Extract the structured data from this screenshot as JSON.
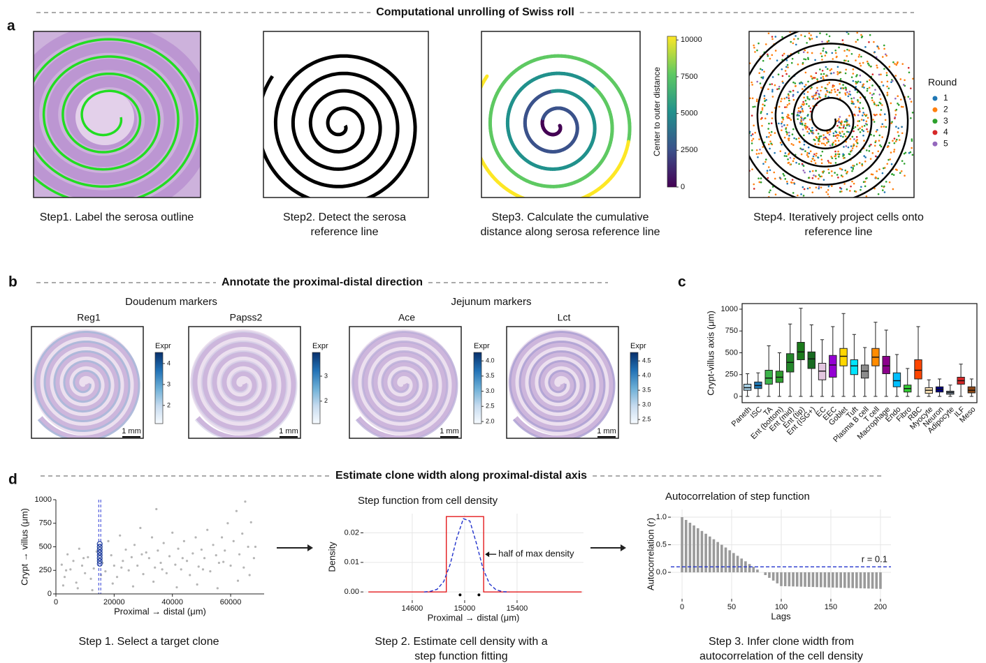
{
  "panel_a": {
    "letter": "a",
    "title": "Computational unrolling of Swiss roll",
    "captions": [
      [
        "Step1. Label the serosa outline"
      ],
      [
        "Step2. Detect the serosa",
        "reference line"
      ],
      [
        "Step3. Calculate the cumulative",
        "distance along serosa reference line"
      ],
      [
        "Step4. Iteratively project cells onto",
        "reference line"
      ]
    ]
  },
  "panel_b": {
    "letter": "b",
    "title": "Annotate the proximal-distal direction",
    "groups": [
      "Doudenum markers",
      "Jejunum markers"
    ],
    "scale_bar": "1 mm"
  },
  "panel_c": {
    "letter": "c"
  },
  "panel_d": {
    "letter": "d",
    "title": "Estimate clone width along proximal-distal axis",
    "captions": [
      [
        "Step 1. Select a target clone"
      ],
      [
        "Step 2. Estimate cell density with a",
        "step function fitting"
      ],
      [
        "Step 3. Infer clone width from",
        "autocorrelation of the cell density"
      ]
    ]
  },
  "chart_data": [
    {
      "type": "colorbar",
      "label": "Center to outer distance",
      "colormap": "viridis",
      "ylim": [
        0,
        10250
      ],
      "yticks": [
        0,
        2500,
        5000,
        7500,
        10000
      ]
    },
    {
      "type": "scatter",
      "legend_title": "Round",
      "series": [
        {
          "name": "1",
          "color": "#1f77b4"
        },
        {
          "name": "2",
          "color": "#ff7f0e"
        },
        {
          "name": "3",
          "color": "#2ca02c"
        },
        {
          "name": "4",
          "color": "#d62728"
        },
        {
          "name": "5",
          "color": "#9467bd"
        }
      ]
    },
    {
      "type": "colorbar",
      "title": "Reg1",
      "label": "Expr",
      "colormap": "blues",
      "ylim": [
        1.13,
        4.53
      ],
      "yticks": [
        2,
        3,
        4
      ]
    },
    {
      "type": "colorbar",
      "title": "Papss2",
      "label": "Expr",
      "colormap": "blues",
      "ylim": [
        1.1,
        3.95
      ],
      "yticks": [
        2,
        3
      ]
    },
    {
      "type": "colorbar",
      "title": "Ace",
      "label": "Expr",
      "colormap": "blues",
      "ylim": [
        1.93,
        4.28
      ],
      "yticks": [
        {
          "value": 2,
          "label": "2.0"
        },
        {
          "value": 2.5,
          "label": "2.5"
        },
        {
          "value": 3,
          "label": "3.0"
        },
        {
          "value": 3.5,
          "label": "3.5"
        },
        {
          "value": 4,
          "label": "4.0"
        }
      ]
    },
    {
      "type": "colorbar",
      "title": "Lct",
      "label": "Expr",
      "colormap": "blues",
      "ylim": [
        2.36,
        4.79
      ],
      "yticks": [
        2.5,
        {
          "value": 3,
          "label": "3.0"
        },
        3.5,
        {
          "value": 4,
          "label": "4.0"
        },
        4.5
      ]
    },
    {
      "type": "box",
      "ylabel": "Crypt-villus axis (μm)",
      "ylim": [
        -72,
        1064
      ],
      "yticks": [
        0,
        250,
        500,
        750,
        1000
      ],
      "categories": [
        "Paneth",
        "ISC",
        "TA",
        "Ent (bottom)",
        "Ent (mid)",
        "Ent (tip)",
        "Ent (ISG+)",
        "EC",
        "EEC",
        "Goblet",
        "Tuft",
        "Plasma B cell",
        "T cell",
        "Macrophage",
        "Endo",
        "Fibro",
        "RBC",
        "Myocyte",
        "Neuron",
        "Adipocyte",
        "ILF",
        "Meso"
      ],
      "colors": [
        "#a6cee3",
        "#1f78b4",
        "#3cb44b",
        "#2e9e2e",
        "#23872a",
        "#1b7a1b",
        "#196b22",
        "#e3c6e0",
        "#9400d3",
        "#ffd700",
        "#00e5ff",
        "#8c8c8c",
        "#ff8c00",
        "#8b008b",
        "#00bfff",
        "#32cd32",
        "#ff4500",
        "#f5deb3",
        "#000080",
        "#708090",
        "#d62728",
        "#8b4513"
      ],
      "boxes": [
        {
          "min": 0,
          "q1": 70,
          "median": 100,
          "q3": 140,
          "max": 260
        },
        {
          "min": 0,
          "q1": 90,
          "median": 125,
          "q3": 165,
          "max": 270
        },
        {
          "min": 0,
          "q1": 140,
          "median": 210,
          "q3": 300,
          "max": 580
        },
        {
          "min": 0,
          "q1": 160,
          "median": 220,
          "q3": 290,
          "max": 500
        },
        {
          "min": 0,
          "q1": 280,
          "median": 390,
          "q3": 490,
          "max": 830
        },
        {
          "min": 0,
          "q1": 420,
          "median": 510,
          "q3": 620,
          "max": 1010
        },
        {
          "min": 0,
          "q1": 320,
          "median": 430,
          "q3": 510,
          "max": 820
        },
        {
          "min": 0,
          "q1": 190,
          "median": 290,
          "q3": 380,
          "max": 650
        },
        {
          "min": 0,
          "q1": 220,
          "median": 360,
          "q3": 470,
          "max": 800
        },
        {
          "min": 0,
          "q1": 350,
          "median": 460,
          "q3": 550,
          "max": 950
        },
        {
          "min": 0,
          "q1": 250,
          "median": 350,
          "q3": 420,
          "max": 710
        },
        {
          "min": 0,
          "q1": 210,
          "median": 290,
          "q3": 360,
          "max": 560
        },
        {
          "min": 0,
          "q1": 350,
          "median": 450,
          "q3": 550,
          "max": 850
        },
        {
          "min": 0,
          "q1": 260,
          "median": 350,
          "q3": 460,
          "max": 760
        },
        {
          "min": 0,
          "q1": 110,
          "median": 180,
          "q3": 270,
          "max": 480
        },
        {
          "min": 0,
          "q1": 50,
          "median": 90,
          "q3": 130,
          "max": 320
        },
        {
          "min": 0,
          "q1": 200,
          "median": 300,
          "q3": 420,
          "max": 800
        },
        {
          "min": 0,
          "q1": 35,
          "median": 70,
          "q3": 100,
          "max": 190
        },
        {
          "min": 0,
          "q1": 50,
          "median": 80,
          "q3": 110,
          "max": 200
        },
        {
          "min": 0,
          "q1": 25,
          "median": 45,
          "q3": 60,
          "max": 130
        },
        {
          "min": 0,
          "q1": 140,
          "median": 180,
          "q3": 220,
          "max": 370
        },
        {
          "min": 0,
          "q1": 40,
          "median": 70,
          "q3": 110,
          "max": 200
        }
      ]
    },
    {
      "type": "scatter",
      "xlabel": "Proximal → distal (μm)",
      "ylabel": "Crypt → villus (μm)",
      "xlim": [
        0,
        71500
      ],
      "ylim": [
        0,
        1000
      ],
      "xticks": [
        0,
        20000,
        40000,
        60000
      ],
      "yticks": [
        0,
        250,
        500,
        750,
        1000
      ],
      "color": "#b5b5b5",
      "x": [
        2000,
        3000,
        4000,
        5000,
        6000,
        7000,
        8000,
        9000,
        10000,
        11000,
        12000,
        13000,
        14000,
        16000,
        17000,
        18000,
        19000,
        20000,
        21000,
        22000,
        23000,
        24000,
        25000,
        26000,
        27000,
        28000,
        29000,
        30000,
        31000,
        32000,
        33000,
        34000,
        34500,
        35000,
        36000,
        37000,
        38000,
        39000,
        40000,
        41000,
        42000,
        43000,
        44000,
        45000,
        46000,
        47000,
        48000,
        49000,
        50000,
        51000,
        52000,
        53000,
        54000,
        55000,
        56000,
        57000,
        58000,
        59000,
        60000,
        61000,
        62000,
        63000,
        64000,
        65000,
        66000,
        67000,
        68000,
        2500,
        7500,
        12500,
        19500,
        26500,
        33500,
        41500,
        48500,
        55500,
        62500,
        66500,
        3500,
        9500,
        15500,
        22500,
        29500,
        36500,
        43500,
        50500,
        57500,
        64500,
        68500
      ],
      "values": [
        310,
        180,
        420,
        260,
        350,
        120,
        480,
        300,
        220,
        390,
        160,
        270,
        450,
        330,
        240,
        560,
        410,
        300,
        180,
        620,
        350,
        470,
        250,
        390,
        520,
        300,
        700,
        210,
        440,
        380,
        600,
        280,
        900,
        460,
        330,
        540,
        220,
        400,
        650,
        310,
        480,
        260,
        560,
        350,
        200,
        430,
        600,
        290,
        470,
        380,
        680,
        240,
        520,
        410,
        330,
        600,
        460,
        750,
        300,
        560,
        880,
        420,
        640,
        980,
        500,
        760,
        380,
        90,
        60,
        40,
        110,
        80,
        130,
        70,
        100,
        60,
        140,
        200,
        250,
        380,
        200,
        280,
        420,
        260,
        380,
        260,
        340,
        280,
        500
      ],
      "highlight": {
        "color": "#1f3f99",
        "x": [
          15050,
          15050,
          15050,
          15050,
          15050,
          15050,
          15050,
          15050
        ],
        "values": [
          320,
          350,
          380,
          410,
          440,
          470,
          500,
          530
        ]
      },
      "vlines": [
        14700,
        15400
      ],
      "vline_color": "#2b3bd6"
    },
    {
      "type": "line",
      "title": "Step function from cell density",
      "xlabel": "Proximal → distal (μm)",
      "ylabel": "Density",
      "xlim": [
        14227,
        15907
      ],
      "ylim": [
        -0.0028,
        0.0265
      ],
      "xticks": [
        14600,
        15000,
        15400
      ],
      "yticks": [
        {
          "value": 0,
          "label": "0.00"
        },
        {
          "value": 0.01,
          "label": "0.01"
        },
        {
          "value": 0.02,
          "label": "0.02"
        }
      ],
      "series": [
        {
          "color": "#e41a1c",
          "style": "solid",
          "x": [
            14265,
            14860,
            14860,
            15145,
            15145,
            15893
          ],
          "values": [
            0,
            0,
            0.0255,
            0.0255,
            0,
            0
          ]
        },
        {
          "color": "#2233cc",
          "style": "dashed",
          "x": [
            14690,
            14740,
            14790,
            14840,
            14890,
            14940,
            14990,
            15040,
            15090,
            15140,
            15190,
            15240,
            15290,
            15340
          ],
          "values": [
            0,
            0.0002,
            0.0009,
            0.0035,
            0.0094,
            0.0182,
            0.0248,
            0.024,
            0.0164,
            0.0079,
            0.0027,
            0.0007,
            0.0001,
            0
          ]
        }
      ],
      "points": {
        "color": "#000000",
        "x": [
          14965,
          15109
        ],
        "values": [
          -0.001,
          -0.001
        ]
      },
      "annotation": {
        "text": "half of max density",
        "x": 15145,
        "y": 0.01275
      }
    },
    {
      "type": "stem",
      "title": "Autocorrelation of step function",
      "xlabel": "Lags",
      "ylabel": "Autocorrelation (r)",
      "xlim": [
        -11.3,
        210.6
      ],
      "ylim": [
        -0.48,
        1.14
      ],
      "xticks": [
        0,
        50,
        100,
        150,
        200
      ],
      "yticks": [
        {
          "value": 0,
          "label": "0.0"
        },
        0.5,
        {
          "value": 1,
          "label": "1.0"
        }
      ],
      "color": "#9a9a9a",
      "x": [
        0,
        4,
        8,
        12,
        16,
        20,
        24,
        28,
        32,
        36,
        40,
        44,
        48,
        52,
        56,
        60,
        64,
        68,
        72,
        76,
        80,
        84,
        88,
        92,
        96,
        100,
        104,
        108,
        112,
        116,
        120,
        124,
        128,
        132,
        136,
        140,
        144,
        148,
        152,
        156,
        160,
        164,
        168,
        172,
        176,
        180,
        184,
        188,
        192,
        196,
        200
      ],
      "values": [
        1,
        0.95,
        0.9,
        0.85,
        0.8,
        0.75,
        0.7,
        0.65,
        0.6,
        0.55,
        0.5,
        0.45,
        0.4,
        0.35,
        0.3,
        0.25,
        0.2,
        0.15,
        0.1,
        0.05,
        0,
        -0.05,
        -0.1,
        -0.15,
        -0.2,
        -0.25,
        -0.252,
        -0.254,
        -0.256,
        -0.258,
        -0.26,
        -0.262,
        -0.264,
        -0.266,
        -0.268,
        -0.27,
        -0.272,
        -0.274,
        -0.276,
        -0.278,
        -0.28,
        -0.282,
        -0.284,
        -0.286,
        -0.288,
        -0.29,
        -0.292,
        -0.294,
        -0.296,
        -0.298,
        -0.3
      ],
      "hline": {
        "value": 0.1,
        "label": "r = 0.1",
        "color": "#2233cc"
      }
    }
  ]
}
